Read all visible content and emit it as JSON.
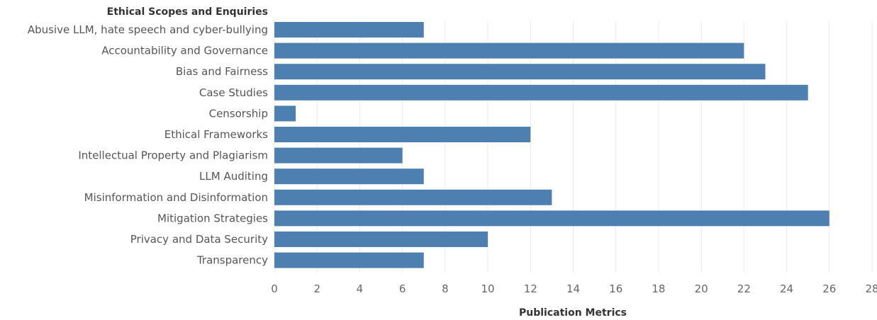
{
  "chart_data": {
    "type": "bar",
    "orientation": "horizontal",
    "ylabel": "Ethical Scopes and Enquiries",
    "xlabel": "Publication Metrics",
    "categories": [
      "Abusive LLM, hate speech and cyber-bullying",
      "Accountability and Governance",
      "Bias and Fairness",
      "Case Studies",
      "Censorship",
      "Ethical Frameworks",
      "Intellectual Property and Plagiarism",
      "LLM Auditing",
      "Misinformation and Disinformation",
      "Mitigation Strategies",
      "Privacy and Data Security",
      "Transparency"
    ],
    "values": [
      7,
      22,
      23,
      25,
      1,
      12,
      6,
      7,
      13,
      26,
      10,
      7
    ],
    "xlim": [
      0,
      28
    ],
    "xticks": [
      0,
      2,
      4,
      6,
      8,
      10,
      12,
      14,
      16,
      18,
      20,
      22,
      24,
      26,
      28
    ],
    "grid": "vertical",
    "bar_color": "#4e7fb1",
    "grid_color": "#eaeaea"
  }
}
